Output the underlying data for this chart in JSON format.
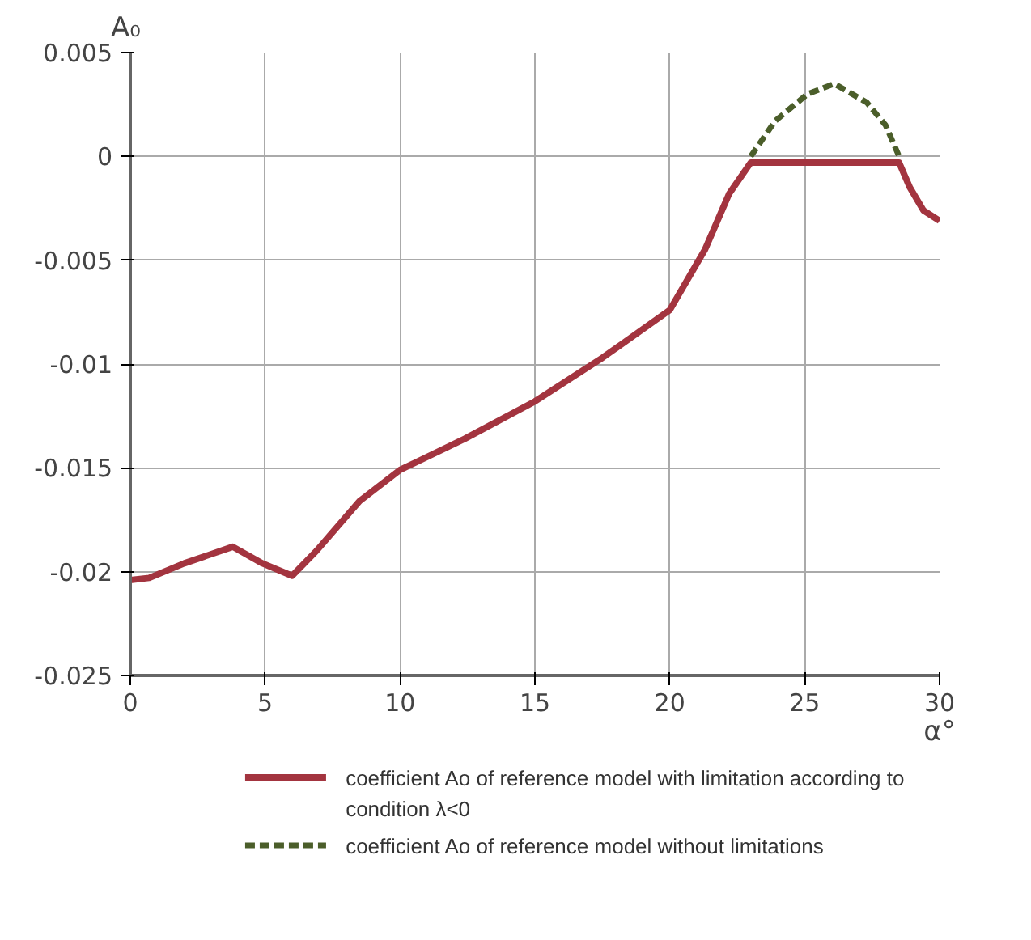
{
  "chart_data": {
    "type": "line",
    "xlabel": "α°",
    "ylabel": "A₀",
    "xlim": [
      0,
      30
    ],
    "xticks": [
      0,
      5,
      10,
      15,
      20,
      25,
      30
    ],
    "ylim": [
      -0.025,
      0.005
    ],
    "yticks": [
      -0.025,
      -0.02,
      -0.015,
      -0.01,
      -0.005,
      0,
      0.005
    ],
    "grid": true,
    "legend": "bottom",
    "marker": "none",
    "series": [
      {
        "name": "coefficient Ao of reference model with limitation according to condition λ<0",
        "color": "#a3343f",
        "line_style": "solid",
        "x": [
          0,
          0.7,
          2,
          3.8,
          4.9,
          6,
          6.9,
          8.5,
          10,
          12.4,
          15,
          17.5,
          20,
          21.3,
          22.2,
          23,
          28.5,
          28.9,
          29.4,
          30
        ],
        "values": [
          -0.0204,
          -0.0203,
          -0.0196,
          -0.0188,
          -0.0196,
          -0.0202,
          -0.019,
          -0.0166,
          -0.0151,
          -0.0136,
          -0.0118,
          -0.0097,
          -0.0074,
          -0.0045,
          -0.0018,
          -0.0003,
          -0.0003,
          -0.0015,
          -0.0026,
          -0.0031
        ]
      },
      {
        "name": "coefficient Ao of reference model without limitations",
        "color": "#4b5e2a",
        "line_style": "dashed",
        "x": [
          23,
          23.9,
          25.1,
          26.1,
          27.3,
          28,
          28.5
        ],
        "values": [
          0,
          0.0017,
          0.003,
          0.0035,
          0.0026,
          0.0015,
          0
        ]
      }
    ]
  }
}
